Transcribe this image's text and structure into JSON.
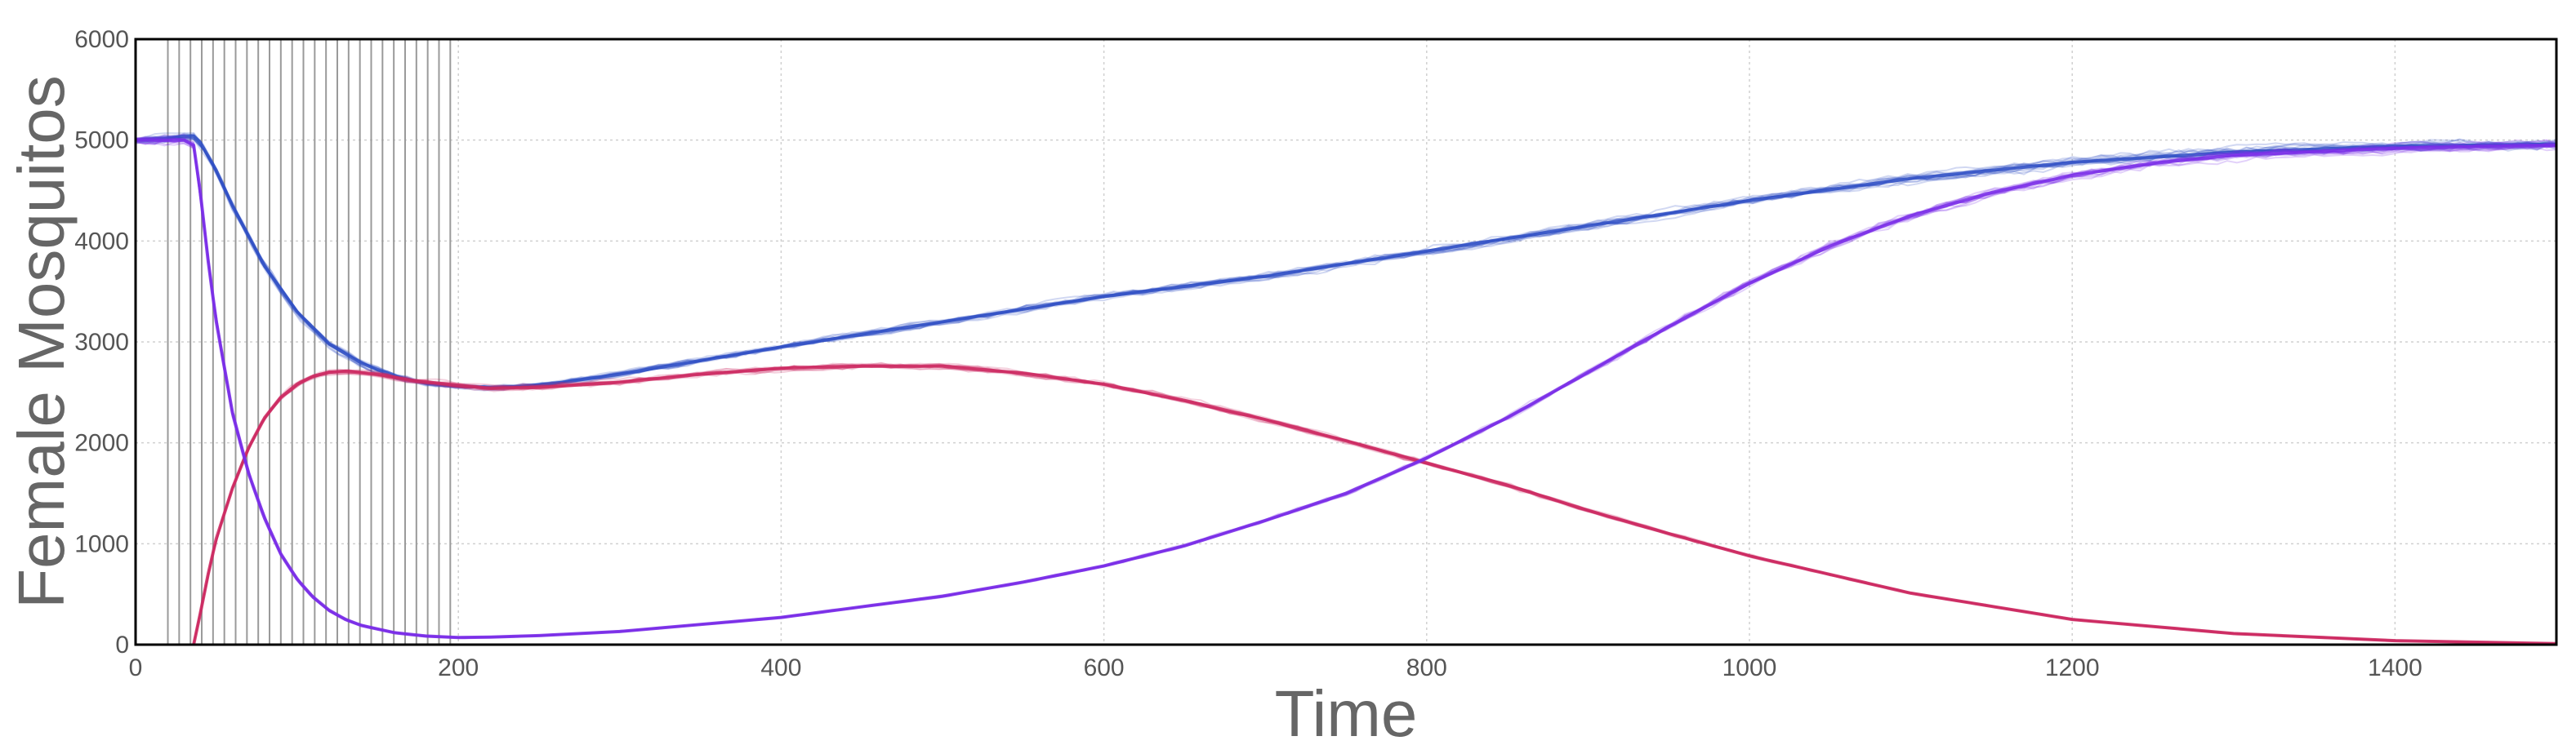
{
  "chart_data": {
    "type": "line",
    "title": "",
    "xlabel": "Time",
    "ylabel": "Female Mosquitos",
    "xlim": [
      0,
      1500
    ],
    "ylim": [
      0,
      6000
    ],
    "x_ticks": [
      0,
      200,
      400,
      600,
      800,
      1000,
      1200,
      1400
    ],
    "y_ticks": [
      0,
      1000,
      2000,
      3000,
      4000,
      5000,
      6000
    ],
    "grid": true,
    "legend": "none",
    "release_times": [
      20,
      27,
      34,
      41,
      48,
      55,
      62,
      69,
      76,
      83,
      90,
      97,
      104,
      111,
      118,
      125,
      132,
      139,
      146,
      153,
      160,
      167,
      174,
      181,
      188,
      195
    ],
    "release_line_color": "#9a9a9a",
    "series": [
      {
        "color": "#2f4fc4",
        "x": [
          0,
          20,
          30,
          36,
          40,
          50,
          60,
          80,
          100,
          120,
          140,
          160,
          180,
          200,
          220,
          240,
          260,
          300,
          400,
          500,
          600,
          700,
          800,
          900,
          1000,
          1100,
          1200,
          1300,
          1400,
          1500
        ],
        "y": [
          5000,
          5020,
          5040,
          5040,
          4980,
          4700,
          4350,
          3750,
          3300,
          2980,
          2790,
          2660,
          2590,
          2560,
          2550,
          2560,
          2590,
          2680,
          2950,
          3200,
          3450,
          3650,
          3900,
          4150,
          4400,
          4620,
          4780,
          4880,
          4940,
          4960
        ]
      },
      {
        "color": "#cc2a62",
        "x": [
          36,
          40,
          45,
          50,
          60,
          70,
          80,
          90,
          100,
          110,
          120,
          130,
          150,
          170,
          200,
          220,
          250,
          300,
          350,
          400,
          450,
          500,
          550,
          600,
          650,
          700,
          750,
          800,
          850,
          900,
          950,
          1000,
          1100,
          1200,
          1300,
          1400,
          1500
        ],
        "y": [
          0,
          300,
          700,
          1050,
          1550,
          1950,
          2250,
          2450,
          2580,
          2660,
          2700,
          2710,
          2680,
          2620,
          2570,
          2540,
          2550,
          2600,
          2680,
          2740,
          2760,
          2760,
          2690,
          2580,
          2420,
          2230,
          2020,
          1800,
          1580,
          1330,
          1100,
          880,
          510,
          250,
          110,
          40,
          10
        ]
      },
      {
        "color": "#7a2ee8",
        "x": [
          0,
          30,
          36,
          40,
          45,
          50,
          60,
          70,
          80,
          90,
          100,
          110,
          120,
          130,
          140,
          160,
          180,
          200,
          220,
          250,
          300,
          400,
          500,
          550,
          600,
          650,
          700,
          750,
          800,
          850,
          900,
          950,
          1000,
          1050,
          1100,
          1150,
          1200,
          1250,
          1300,
          1400,
          1500
        ],
        "y": [
          5000,
          5000,
          4950,
          4500,
          3800,
          3200,
          2300,
          1700,
          1250,
          900,
          650,
          470,
          340,
          250,
          190,
          120,
          85,
          70,
          75,
          90,
          130,
          270,
          480,
          620,
          780,
          980,
          1230,
          1500,
          1850,
          2250,
          2700,
          3150,
          3580,
          3950,
          4250,
          4480,
          4650,
          4770,
          4850,
          4920,
          4950
        ]
      }
    ]
  }
}
